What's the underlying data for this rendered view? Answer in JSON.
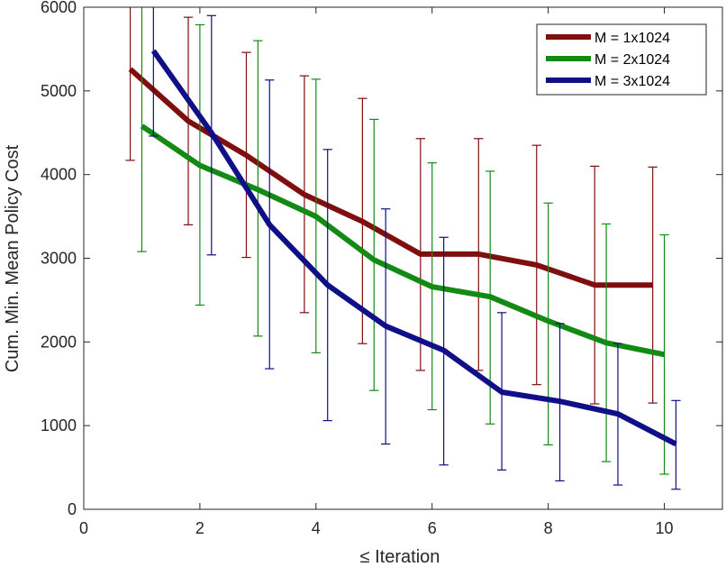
{
  "chart_data": {
    "type": "line",
    "title": "",
    "xlabel": "≤ Iteration",
    "ylabel": "Cum. Min. Mean Policy Cost",
    "xlim": [
      0,
      11
    ],
    "ylim": [
      0,
      6000
    ],
    "xticks": [
      0,
      2,
      4,
      6,
      8,
      10
    ],
    "yticks": [
      0,
      1000,
      2000,
      3000,
      4000,
      5000,
      6000
    ],
    "xtick_labels": [
      "0",
      "2",
      "4",
      "6",
      "8",
      "10"
    ],
    "ytick_labels": [
      "0",
      "1000",
      "2000",
      "3000",
      "4000",
      "5000",
      "6000"
    ],
    "grid": false,
    "legend_position": "top-right",
    "series": [
      {
        "name": "M = 1x1024",
        "color": "#7f0f0f",
        "x": [
          0.8,
          1.8,
          2.8,
          3.8,
          4.8,
          5.8,
          6.8,
          7.8,
          8.8,
          9.8
        ],
        "values": [
          5260,
          4640,
          4230,
          3760,
          3440,
          3050,
          3050,
          2920,
          2680,
          2680
        ],
        "err_low": [
          4170,
          3400,
          3010,
          2350,
          1980,
          1660,
          1660,
          1490,
          1260,
          1270
        ],
        "err_high": [
          6000,
          5880,
          5460,
          5180,
          4910,
          4430,
          4430,
          4350,
          4100,
          4090
        ]
      },
      {
        "name": "M = 2x1024",
        "color": "#138a13",
        "x": [
          1.0,
          2.0,
          3.0,
          4.0,
          5.0,
          6.0,
          7.0,
          8.0,
          9.0,
          10.0
        ],
        "values": [
          4580,
          4110,
          3820,
          3500,
          2980,
          2660,
          2540,
          2250,
          1990,
          1850
        ],
        "err_low": [
          3080,
          2440,
          2070,
          1870,
          1420,
          1190,
          1020,
          770,
          570,
          420
        ],
        "err_high": [
          6000,
          5790,
          5600,
          5140,
          4660,
          4140,
          4040,
          3660,
          3410,
          3280
        ]
      },
      {
        "name": "M = 3x1024",
        "color": "#0f0f87",
        "x": [
          1.2,
          2.2,
          3.2,
          4.2,
          5.2,
          6.2,
          7.2,
          8.2,
          9.2,
          10.2
        ],
        "values": [
          5480,
          4500,
          3400,
          2680,
          2190,
          1900,
          1400,
          1290,
          1140,
          780
        ],
        "err_low": [
          4460,
          3040,
          1680,
          1060,
          780,
          530,
          470,
          340,
          290,
          240
        ],
        "err_high": [
          6000,
          5900,
          5130,
          4300,
          3590,
          3250,
          2350,
          2220,
          1980,
          1300
        ]
      }
    ]
  }
}
